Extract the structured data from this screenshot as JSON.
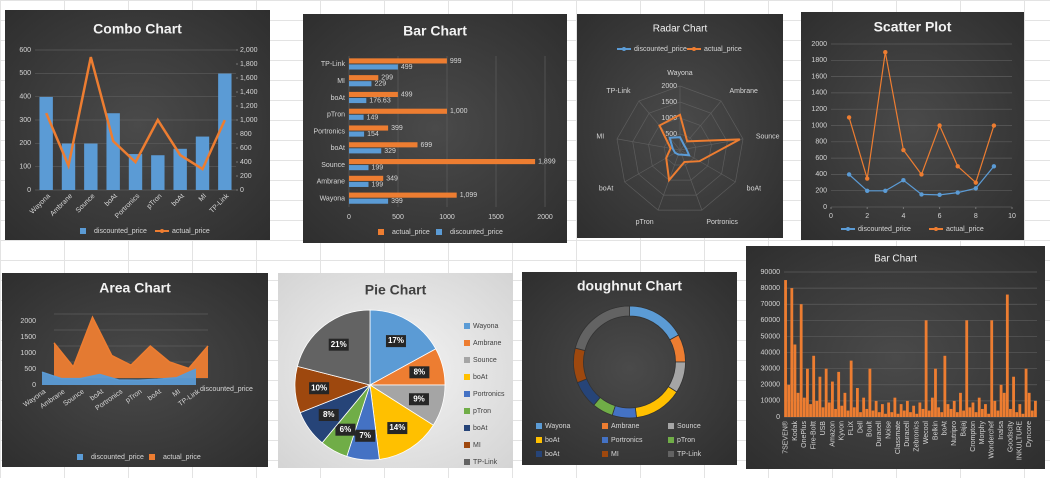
{
  "chart_data": [
    {
      "type": "combo",
      "title": "Combo Chart",
      "categories": [
        "Wayona",
        "Ambrane",
        "Sounce",
        "boAt",
        "Portronics",
        "pTron",
        "boAt",
        "MI",
        "TP-Link"
      ],
      "series": [
        {
          "name": "discounted_price",
          "type": "bar",
          "axis": "y",
          "color": "#5b9bd5",
          "values": [
            399,
            199,
            199,
            329,
            154,
            149,
            176.63,
            229,
            499
          ]
        },
        {
          "name": "actual_price",
          "type": "line",
          "axis": "y2",
          "color": "#ed7d31",
          "values": [
            1099,
            349,
            1899,
            699,
            399,
            1000,
            499,
            299,
            999
          ]
        }
      ],
      "ylim": [
        0,
        600
      ],
      "yticks": [
        0,
        100,
        200,
        300,
        400,
        500,
        600
      ],
      "y2lim": [
        0,
        2000
      ],
      "y2ticks": [
        0,
        200,
        400,
        600,
        800,
        {
          "value": 1000,
          "label": "1,000"
        },
        {
          "value": 1200,
          "label": "1,200"
        },
        {
          "value": 1400,
          "label": "1,400"
        },
        {
          "value": 1600,
          "label": "1,600"
        },
        {
          "value": 1800,
          "label": "1,800"
        },
        {
          "value": 2000,
          "label": "2,000"
        }
      ],
      "grid": true
    },
    {
      "type": "bar",
      "orientation": "horizontal",
      "title": "Bar Chart",
      "categories": [
        "Wayona",
        "Ambrane",
        "Sounce",
        "boAt",
        "Portronics",
        "pTron",
        "boAt",
        "MI",
        "TP-Link"
      ],
      "series": [
        {
          "name": "actual_price",
          "color": "#ed7d31",
          "values": [
            1099,
            349,
            1899,
            699,
            399,
            1000,
            499,
            299,
            999
          ],
          "value_labels": [
            "1,099",
            "349",
            "1,899",
            "699",
            "399",
            "1,000",
            "499",
            "299",
            "999"
          ]
        },
        {
          "name": "discounted_price",
          "color": "#5b9bd5",
          "values": [
            399,
            199,
            199,
            329,
            154,
            149,
            176.63,
            229,
            499
          ]
        }
      ],
      "xlim": [
        0,
        2000
      ],
      "xticks": [
        0,
        500,
        1000,
        1500,
        2000
      ],
      "grid": true
    },
    {
      "type": "radar",
      "title": "Radar Chart",
      "categories": [
        "Wayona",
        "Ambrane",
        "Sounce",
        "boAt",
        "Portronics",
        "pTron",
        "boAt",
        "MI",
        "TP-Link"
      ],
      "series": [
        {
          "name": "discounted_price",
          "color": "#5b9bd5",
          "values": [
            399,
            199,
            199,
            329,
            154,
            149,
            176.63,
            229,
            499
          ]
        },
        {
          "name": "actual_price",
          "color": "#ed7d31",
          "values": [
            1099,
            349,
            1899,
            699,
            399,
            1000,
            499,
            299,
            999
          ]
        }
      ],
      "rlim": [
        0,
        2000
      ],
      "rticks": [
        500,
        1000,
        1500,
        2000
      ]
    },
    {
      "type": "scatter",
      "title": "Scatter Plot",
      "x": [
        1,
        2,
        3,
        4,
        5,
        6,
        7,
        8,
        9
      ],
      "series": [
        {
          "name": "discounted_price",
          "color": "#5b9bd5",
          "values": [
            399,
            199,
            199,
            329,
            154,
            149,
            176.63,
            229,
            499
          ]
        },
        {
          "name": "actual_price",
          "color": "#ed7d31",
          "values": [
            1099,
            349,
            1899,
            699,
            399,
            1000,
            499,
            299,
            999
          ]
        }
      ],
      "xlim": [
        0,
        10
      ],
      "xticks": [
        0,
        2,
        4,
        6,
        8,
        10
      ],
      "ylim": [
        0,
        2000
      ],
      "yticks": [
        0,
        200,
        400,
        600,
        800,
        1000,
        1200,
        1400,
        1600,
        1800,
        2000
      ],
      "grid": true
    },
    {
      "type": "area",
      "title": "Area Chart",
      "categories": [
        "Wayona",
        "Ambrane",
        "Sounce",
        "boAt",
        "Portronics",
        "pTron",
        "boAt",
        "MI",
        "TP-Link"
      ],
      "series": [
        {
          "name": "discounted_price",
          "color": "#5b9bd5",
          "values": [
            399,
            199,
            199,
            329,
            154,
            149,
            176.63,
            229,
            499
          ]
        },
        {
          "name": "actual_price",
          "color": "#ed7d31",
          "values": [
            1099,
            349,
            1899,
            699,
            399,
            1000,
            499,
            299,
            999
          ]
        }
      ],
      "ylim": [
        0,
        2000
      ],
      "yticks": [
        0,
        500,
        1000,
        1500,
        2000
      ],
      "grid": true
    },
    {
      "type": "pie",
      "title": "Pie Chart",
      "categories": [
        "Wayona",
        "Ambrane",
        "Sounce",
        "boAt",
        "Portronics",
        "pTron",
        "boAt",
        "MI",
        "TP-Link"
      ],
      "values": [
        17,
        8,
        9,
        14,
        7,
        6,
        8,
        10,
        21
      ],
      "value_labels": [
        "17%",
        "8%",
        "9%",
        "14%",
        "7%",
        "6%",
        "8%",
        "10%",
        "21%"
      ],
      "colors": [
        "#5b9bd5",
        "#ed7d31",
        "#a5a5a5",
        "#ffc000",
        "#4472c4",
        "#70ad47",
        "#264478",
        "#9e480e",
        "#636363"
      ]
    },
    {
      "type": "doughnut",
      "title": "doughnut Chart",
      "categories": [
        "Wayona",
        "Ambrane",
        "Sounce",
        "boAt",
        "Portronics",
        "pTron",
        "boAt",
        "MI",
        "TP-Link"
      ],
      "values": [
        17,
        8,
        9,
        14,
        7,
        6,
        8,
        10,
        21
      ],
      "colors": [
        "#5b9bd5",
        "#ed7d31",
        "#a5a5a5",
        "#ffc000",
        "#4472c4",
        "#70ad47",
        "#264478",
        "#9e480e",
        "#636363"
      ]
    },
    {
      "type": "bar",
      "orientation": "vertical",
      "title": "Bar Chart",
      "color": "#ed7d31",
      "categories": [
        "7SEVEN®",
        null,
        null,
        "Kodak",
        null,
        null,
        "OnePlus",
        null,
        null,
        "Fire-Boltt",
        null,
        null,
        "USB",
        null,
        null,
        "Amazon",
        null,
        null,
        "Kyvon",
        null,
        null,
        "FLiX",
        null,
        null,
        "Dell",
        null,
        null,
        "Boult",
        null,
        null,
        "Duracell",
        null,
        null,
        "Noise",
        null,
        null,
        "Classmate",
        null,
        null,
        "Duracell",
        null,
        null,
        "Zebronics",
        null,
        null,
        "Wecool",
        null,
        null,
        "Belkin",
        null,
        null,
        "boAt",
        null,
        null,
        "Nutripro",
        null,
        null,
        "Bajaj",
        null,
        null,
        "Crompton",
        null,
        null,
        "Morphy",
        null,
        null,
        "Wonderchef",
        null,
        null,
        "Inalsa",
        null,
        null,
        "Goodscity",
        null,
        null,
        "INKULTURE",
        null,
        null,
        "Dyncore",
        null,
        null
      ],
      "values": [
        85000,
        20000,
        80000,
        45000,
        15000,
        70000,
        12000,
        30000,
        8000,
        38000,
        10000,
        25000,
        6000,
        30000,
        9000,
        22000,
        5000,
        28000,
        7000,
        15000,
        4000,
        35000,
        6000,
        18000,
        3000,
        12000,
        5000,
        30000,
        4000,
        10000,
        3000,
        8000,
        2000,
        9000,
        3000,
        12000,
        2000,
        8000,
        4000,
        10000,
        3000,
        7000,
        2000,
        9000,
        5000,
        60000,
        4000,
        12000,
        30000,
        6000,
        3000,
        38000,
        8000,
        5000,
        10000,
        3000,
        15000,
        4000,
        60000,
        6000,
        9000,
        3000,
        12000,
        5000,
        8000,
        2000,
        60000,
        10000,
        4000,
        20000,
        15000,
        76000,
        5000,
        25000,
        3000,
        8000,
        2000,
        30000,
        15000,
        4000,
        10000
      ],
      "ylim": [
        0,
        90000
      ],
      "yticks": [
        0,
        10000,
        20000,
        30000,
        40000,
        50000,
        60000,
        70000,
        80000,
        90000
      ],
      "grid": true
    }
  ]
}
